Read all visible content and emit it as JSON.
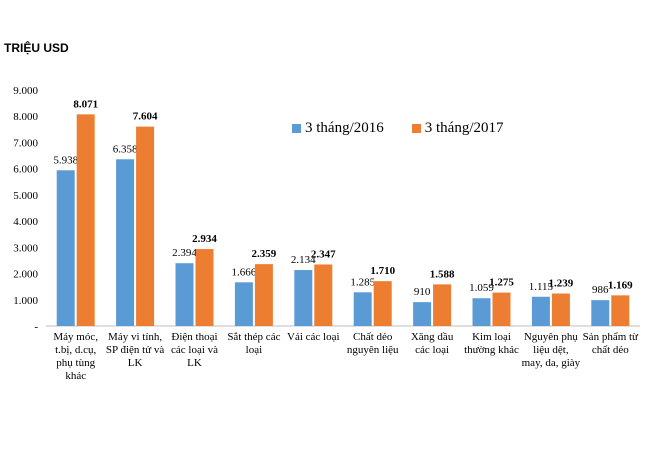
{
  "chart_data": {
    "type": "bar",
    "unit_label": "TRIỆU USD",
    "categories": [
      [
        "Máy móc,",
        "t.bị, d.cụ,",
        "phụ tùng",
        "khác"
      ],
      [
        "Máy vi tính,",
        "SP điện tử và",
        "LK"
      ],
      [
        "Điện thoại",
        "các loại và",
        "LK"
      ],
      [
        "Sắt thép các",
        "loại"
      ],
      [
        "Vải các loại"
      ],
      [
        "Chất dẻo",
        "nguyên liệu"
      ],
      [
        "Xăng dầu",
        "các loại"
      ],
      [
        "Kim loại",
        "thường khác"
      ],
      [
        "Nguyên phụ",
        "liệu dệt,",
        "may, da, giày"
      ],
      [
        "Sản phẩm từ",
        "chất dẻo"
      ]
    ],
    "series": [
      {
        "name": "3 tháng/2016",
        "color": "#5B9BD5",
        "values": [
          5938,
          6358,
          2394,
          1666,
          2134,
          1285,
          910,
          1059,
          1115,
          986
        ],
        "labels": [
          "5.938",
          "6.358",
          "2.394",
          "1.666",
          "2.134",
          "1.285",
          "910",
          "1.059",
          "1.115",
          "986"
        ]
      },
      {
        "name": "3 tháng/2017",
        "color": "#ED7D31",
        "values": [
          8071,
          7604,
          2934,
          2359,
          2347,
          1710,
          1588,
          1275,
          1239,
          1169
        ],
        "labels": [
          "8.071",
          "7.604",
          "2.934",
          "2.359",
          "2.347",
          "1.710",
          "1.588",
          "1.275",
          "1.239",
          "1.169"
        ]
      }
    ],
    "ylim": [
      0,
      9000
    ],
    "yticks": [
      {
        "value": 0,
        "label": "-"
      },
      {
        "value": 1000,
        "label": "1.000"
      },
      {
        "value": 2000,
        "label": "2.000"
      },
      {
        "value": 3000,
        "label": "3.000"
      },
      {
        "value": 4000,
        "label": "4.000"
      },
      {
        "value": 5000,
        "label": "5.000"
      },
      {
        "value": 6000,
        "label": "6.000"
      },
      {
        "value": 7000,
        "label": "7.000"
      },
      {
        "value": 8000,
        "label": "8.000"
      },
      {
        "value": 9000,
        "label": "9.000"
      }
    ],
    "grid": false,
    "legend_position": "top-right"
  }
}
